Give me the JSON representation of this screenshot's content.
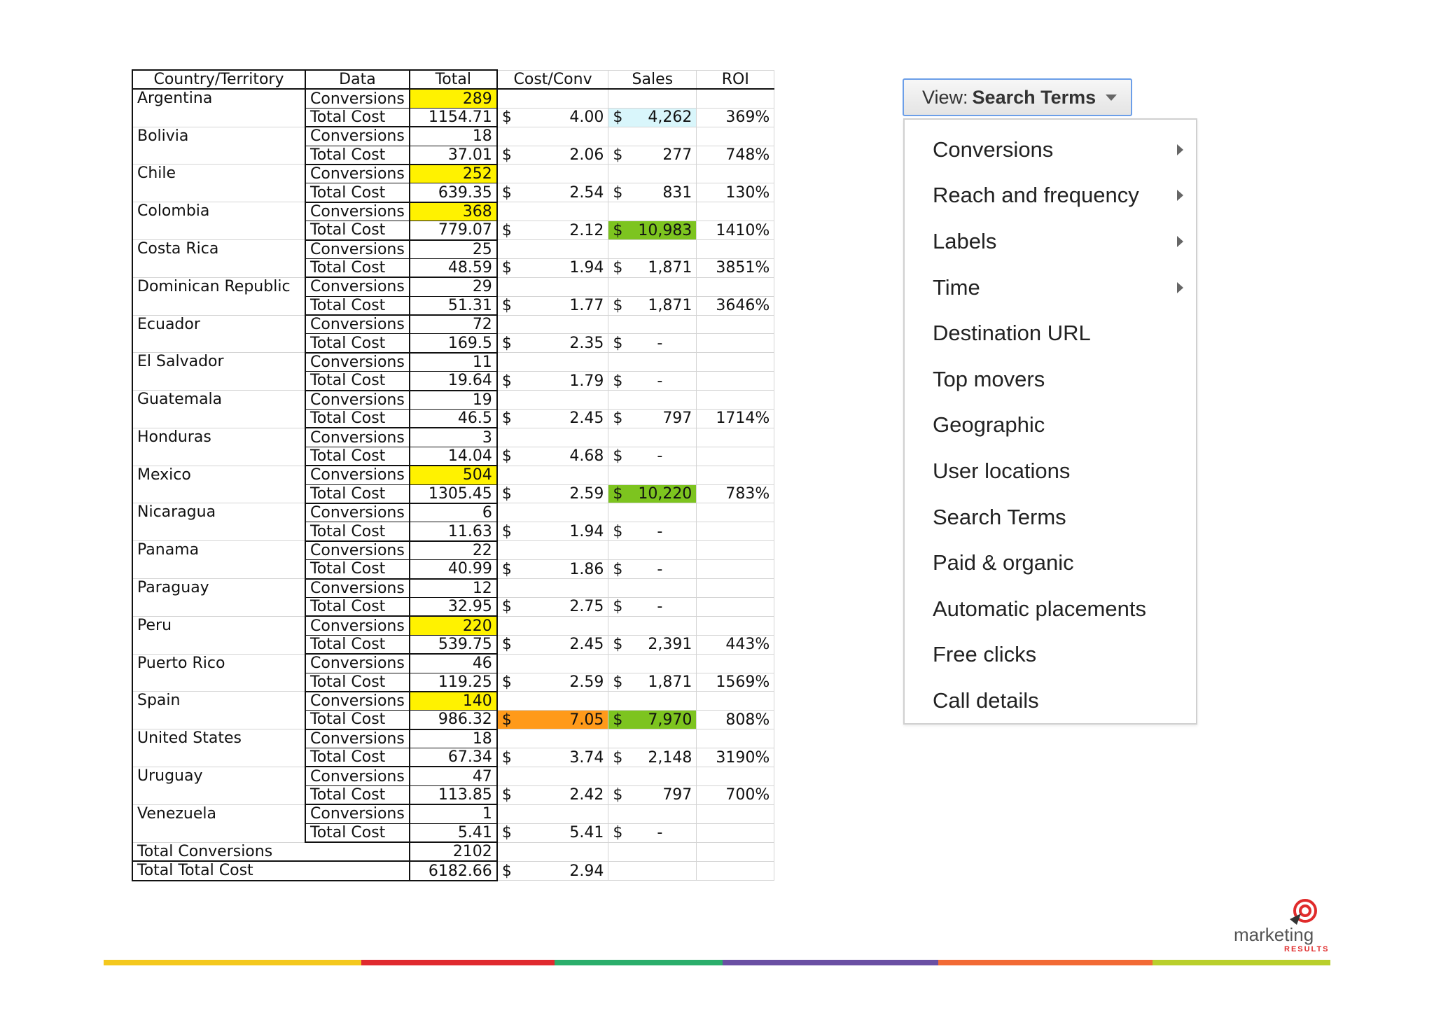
{
  "table": {
    "headers": [
      "Country/Territory",
      "Data",
      "Total",
      "Cost/Conv",
      "Sales",
      "ROI"
    ],
    "rows": [
      {
        "country": "Argentina",
        "conv": "289",
        "cost": "1154.71",
        "cpc": "4.00",
        "sales": "4,262",
        "roi": "369%",
        "conv_hl": "y",
        "sales_hl": "c"
      },
      {
        "country": "Bolivia",
        "conv": "18",
        "cost": "37.01",
        "cpc": "2.06",
        "sales": "277",
        "roi": "748%"
      },
      {
        "country": "Chile",
        "conv": "252",
        "cost": "639.35",
        "cpc": "2.54",
        "sales": "831",
        "roi": "130%",
        "conv_hl": "y"
      },
      {
        "country": "Colombia",
        "conv": "368",
        "cost": "779.07",
        "cpc": "2.12",
        "sales": "10,983",
        "roi": "1410%",
        "conv_hl": "y",
        "sales_hl": "g"
      },
      {
        "country": "Costa Rica",
        "conv": "25",
        "cost": "48.59",
        "cpc": "1.94",
        "sales": "1,871",
        "roi": "3851%"
      },
      {
        "country": "Dominican Republic",
        "conv": "29",
        "cost": "51.31",
        "cpc": "1.77",
        "sales": "1,871",
        "roi": "3646%"
      },
      {
        "country": "Ecuador",
        "conv": "72",
        "cost": "169.5",
        "cpc": "2.35",
        "sales": "-",
        "roi": ""
      },
      {
        "country": "El Salvador",
        "conv": "11",
        "cost": "19.64",
        "cpc": "1.79",
        "sales": "-",
        "roi": ""
      },
      {
        "country": "Guatemala",
        "conv": "19",
        "cost": "46.5",
        "cpc": "2.45",
        "sales": "797",
        "roi": "1714%"
      },
      {
        "country": "Honduras",
        "conv": "3",
        "cost": "14.04",
        "cpc": "4.68",
        "sales": "-",
        "roi": ""
      },
      {
        "country": "Mexico",
        "conv": "504",
        "cost": "1305.45",
        "cpc": "2.59",
        "sales": "10,220",
        "roi": "783%",
        "conv_hl": "y",
        "sales_hl": "g"
      },
      {
        "country": "Nicaragua",
        "conv": "6",
        "cost": "11.63",
        "cpc": "1.94",
        "sales": "-",
        "roi": ""
      },
      {
        "country": "Panama",
        "conv": "22",
        "cost": "40.99",
        "cpc": "1.86",
        "sales": "-",
        "roi": ""
      },
      {
        "country": "Paraguay",
        "conv": "12",
        "cost": "32.95",
        "cpc": "2.75",
        "sales": "-",
        "roi": ""
      },
      {
        "country": "Peru",
        "conv": "220",
        "cost": "539.75",
        "cpc": "2.45",
        "sales": "2,391",
        "roi": "443%",
        "conv_hl": "y"
      },
      {
        "country": "Puerto Rico",
        "conv": "46",
        "cost": "119.25",
        "cpc": "2.59",
        "sales": "1,871",
        "roi": "1569%"
      },
      {
        "country": "Spain",
        "conv": "140",
        "cost": "986.32",
        "cpc": "7.05",
        "sales": "7,970",
        "roi": "808%",
        "conv_hl": "y",
        "cpc_hl": "o",
        "sales_hl": "g"
      },
      {
        "country": "United States",
        "conv": "18",
        "cost": "67.34",
        "cpc": "3.74",
        "sales": "2,148",
        "roi": "3190%"
      },
      {
        "country": "Uruguay",
        "conv": "47",
        "cost": "113.85",
        "cpc": "2.42",
        "sales": "797",
        "roi": "700%"
      },
      {
        "country": "Venezuela",
        "conv": "1",
        "cost": "5.41",
        "cpc": "5.41",
        "sales": "-",
        "roi": ""
      }
    ],
    "conversions_label": "Conversions",
    "cost_label": "Total Cost",
    "currency": "$",
    "totals": [
      {
        "label": "Total Conversions",
        "total": "2102",
        "cpc": ""
      },
      {
        "label": "Total Total Cost",
        "total": "6182.66",
        "cpc": "2.94"
      }
    ]
  },
  "view_button": {
    "label": "View:",
    "value": "Search Terms"
  },
  "menu": {
    "items": [
      {
        "label": "Conversions",
        "submenu": true
      },
      {
        "label": "Reach and frequency",
        "submenu": true
      },
      {
        "label": "Labels",
        "submenu": true
      },
      {
        "label": "Time",
        "submenu": true
      },
      {
        "label": "Destination URL",
        "submenu": false
      },
      {
        "label": "Top movers",
        "submenu": false
      },
      {
        "label": "Geographic",
        "submenu": false
      },
      {
        "label": "User locations",
        "submenu": false
      },
      {
        "label": "Search Terms",
        "submenu": false
      },
      {
        "label": "Paid & organic",
        "submenu": false
      },
      {
        "label": "Automatic placements",
        "submenu": false
      },
      {
        "label": "Free clicks",
        "submenu": false
      },
      {
        "label": "Call details",
        "submenu": false
      }
    ]
  },
  "logo": {
    "word": "marketing",
    "sub": "RESULTS"
  },
  "colors": {
    "highlight_yellow": "#fff200",
    "highlight_cyan": "#d9f6fb",
    "highlight_green": "#7dc41f",
    "highlight_orange": "#ff9a1a",
    "stripe": [
      "#f4c81e",
      "#e02a2f",
      "#2bae6b",
      "#6a4fa3",
      "#f26a35",
      "#b9cf2c"
    ]
  }
}
